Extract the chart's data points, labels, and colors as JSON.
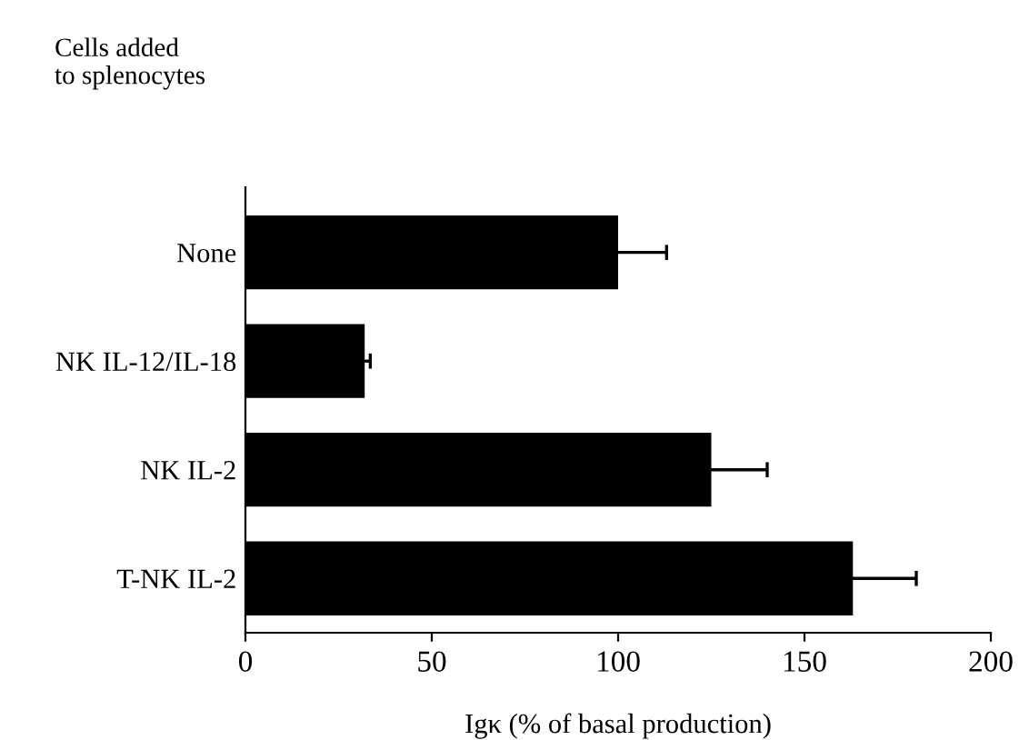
{
  "chart_data": {
    "type": "bar",
    "orientation": "horizontal",
    "ylabel": "Cells added\nto splenocytes",
    "xlabel": "Igκ (% of basal production)",
    "categories": [
      "None",
      "NK IL-12/IL-18",
      "NK IL-2",
      "T-NK IL-2"
    ],
    "values": [
      100,
      32,
      125,
      163
    ],
    "errors": [
      13,
      1.5,
      15,
      17
    ],
    "color": "#000000",
    "xlim": [
      0,
      200
    ],
    "xticks": [
      0,
      50,
      100,
      150,
      200
    ],
    "grid": false,
    "legend": false
  }
}
